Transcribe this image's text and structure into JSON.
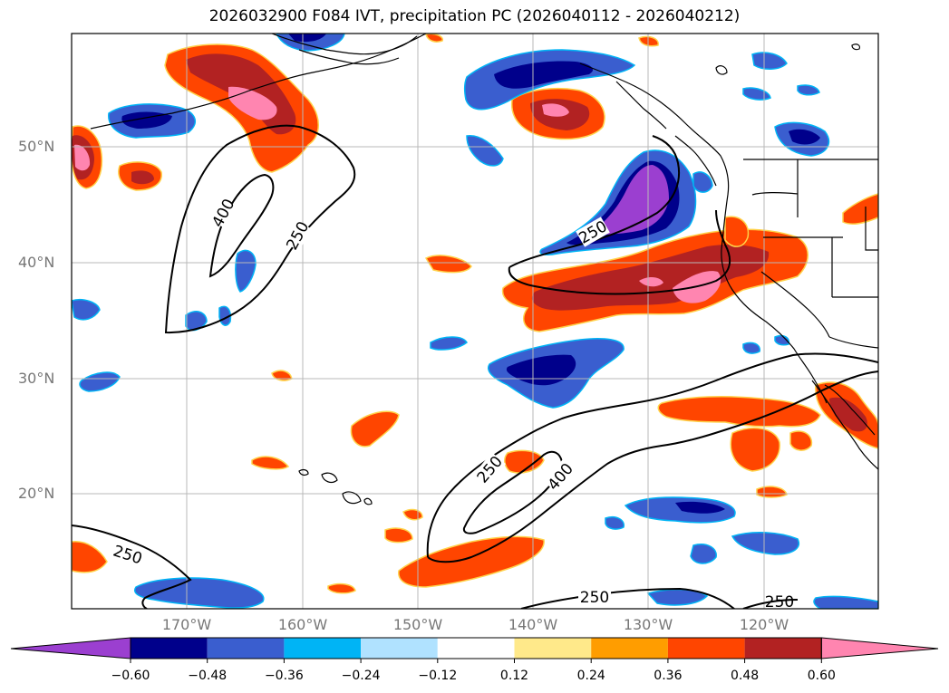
{
  "title": "2026032900 F084 IVT, precipitation PC (2026040112 - 2026040212)",
  "map": {
    "lat_labels": [
      {
        "text": "50°N",
        "lat": 50
      },
      {
        "text": "40°N",
        "lat": 40
      },
      {
        "text": "30°N",
        "lat": 30
      },
      {
        "text": "20°N",
        "lat": 20
      }
    ],
    "lon_labels": [
      {
        "text": "170°W",
        "lon": -170
      },
      {
        "text": "160°W",
        "lon": -160
      },
      {
        "text": "150°W",
        "lon": -150
      },
      {
        "text": "140°W",
        "lon": -140
      },
      {
        "text": "130°W",
        "lon": -130
      },
      {
        "text": "120°W",
        "lon": -120
      }
    ],
    "contour_labels": [
      "400",
      "250",
      "250",
      "250",
      "400",
      "250",
      "250"
    ]
  },
  "colorbar": {
    "ticks": [
      "−0.60",
      "−0.48",
      "−0.36",
      "−0.24",
      "−0.12",
      "0.12",
      "0.24",
      "0.36",
      "0.48",
      "0.60"
    ],
    "colors": [
      "#9b3fd0",
      "#00008b",
      "#3a5ecf",
      "#00b4f5",
      "#b0e2ff",
      "#ffffff",
      "#ffe98a",
      "#ff9d00",
      "#ff4500",
      "#b22222",
      "#ff85b0"
    ]
  }
}
